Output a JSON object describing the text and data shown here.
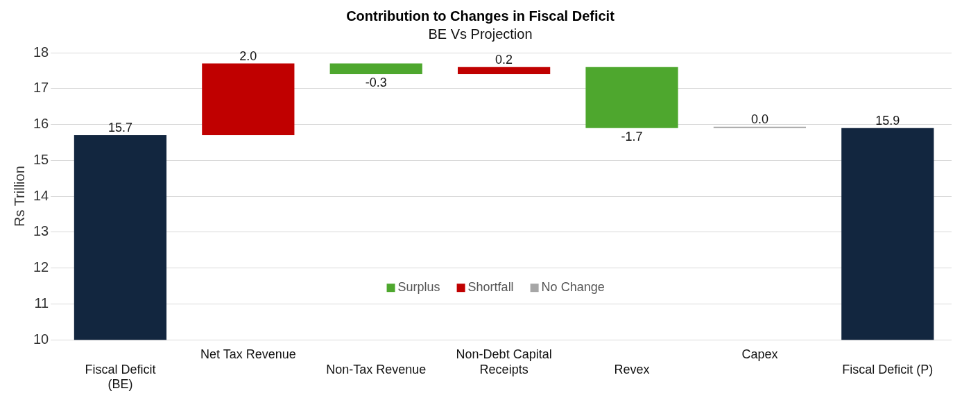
{
  "chart_data": {
    "type": "bar",
    "title": "Contribution to Changes in Fiscal Deficit",
    "subtitle": "BE Vs Projection",
    "ylabel": "Rs Trillion",
    "categories": [
      "Fiscal Deficit (BE)",
      "Net Tax Revenue",
      "Non-Tax Revenue",
      "Non-Debt Capital Receipts",
      "Revex",
      "Capex",
      "Fiscal Deficit (P)"
    ],
    "series": [
      {
        "color": "#12263f",
        "values": [
          15.7,
          null,
          null,
          null,
          null,
          null,
          15.9
        ],
        "value_labels": [
          "15.7",
          null,
          null,
          null,
          null,
          null,
          "15.9"
        ]
      },
      {
        "name": "Surplus",
        "color": "#4ea72e",
        "values": [
          null,
          null,
          -0.3,
          null,
          -1.7,
          null,
          null
        ],
        "base": [
          null,
          null,
          17.7,
          null,
          17.6,
          null,
          null
        ],
        "value_labels": [
          null,
          null,
          "-0.3",
          null,
          "-1.7",
          null,
          null
        ]
      },
      {
        "name": "Shortfall",
        "color": "#c00000",
        "values": [
          null,
          2.0,
          null,
          0.2,
          null,
          null,
          null
        ],
        "base": [
          null,
          15.7,
          null,
          17.4,
          null,
          null,
          null
        ],
        "value_labels": [
          null,
          "2.0",
          null,
          "0.2",
          null,
          null,
          null
        ]
      },
      {
        "name": "No Change",
        "color": "#a6a6a6",
        "values": [
          null,
          null,
          null,
          null,
          null,
          0.0,
          null
        ],
        "base": [
          null,
          null,
          null,
          null,
          null,
          15.9,
          null
        ],
        "value_labels": [
          null,
          null,
          null,
          null,
          null,
          "0.0",
          null
        ]
      }
    ],
    "ylim": [
      10,
      18
    ],
    "yticks": [
      10,
      11,
      12,
      13,
      14,
      15,
      16,
      17,
      18
    ],
    "grid": "y",
    "legend": "bottom"
  }
}
